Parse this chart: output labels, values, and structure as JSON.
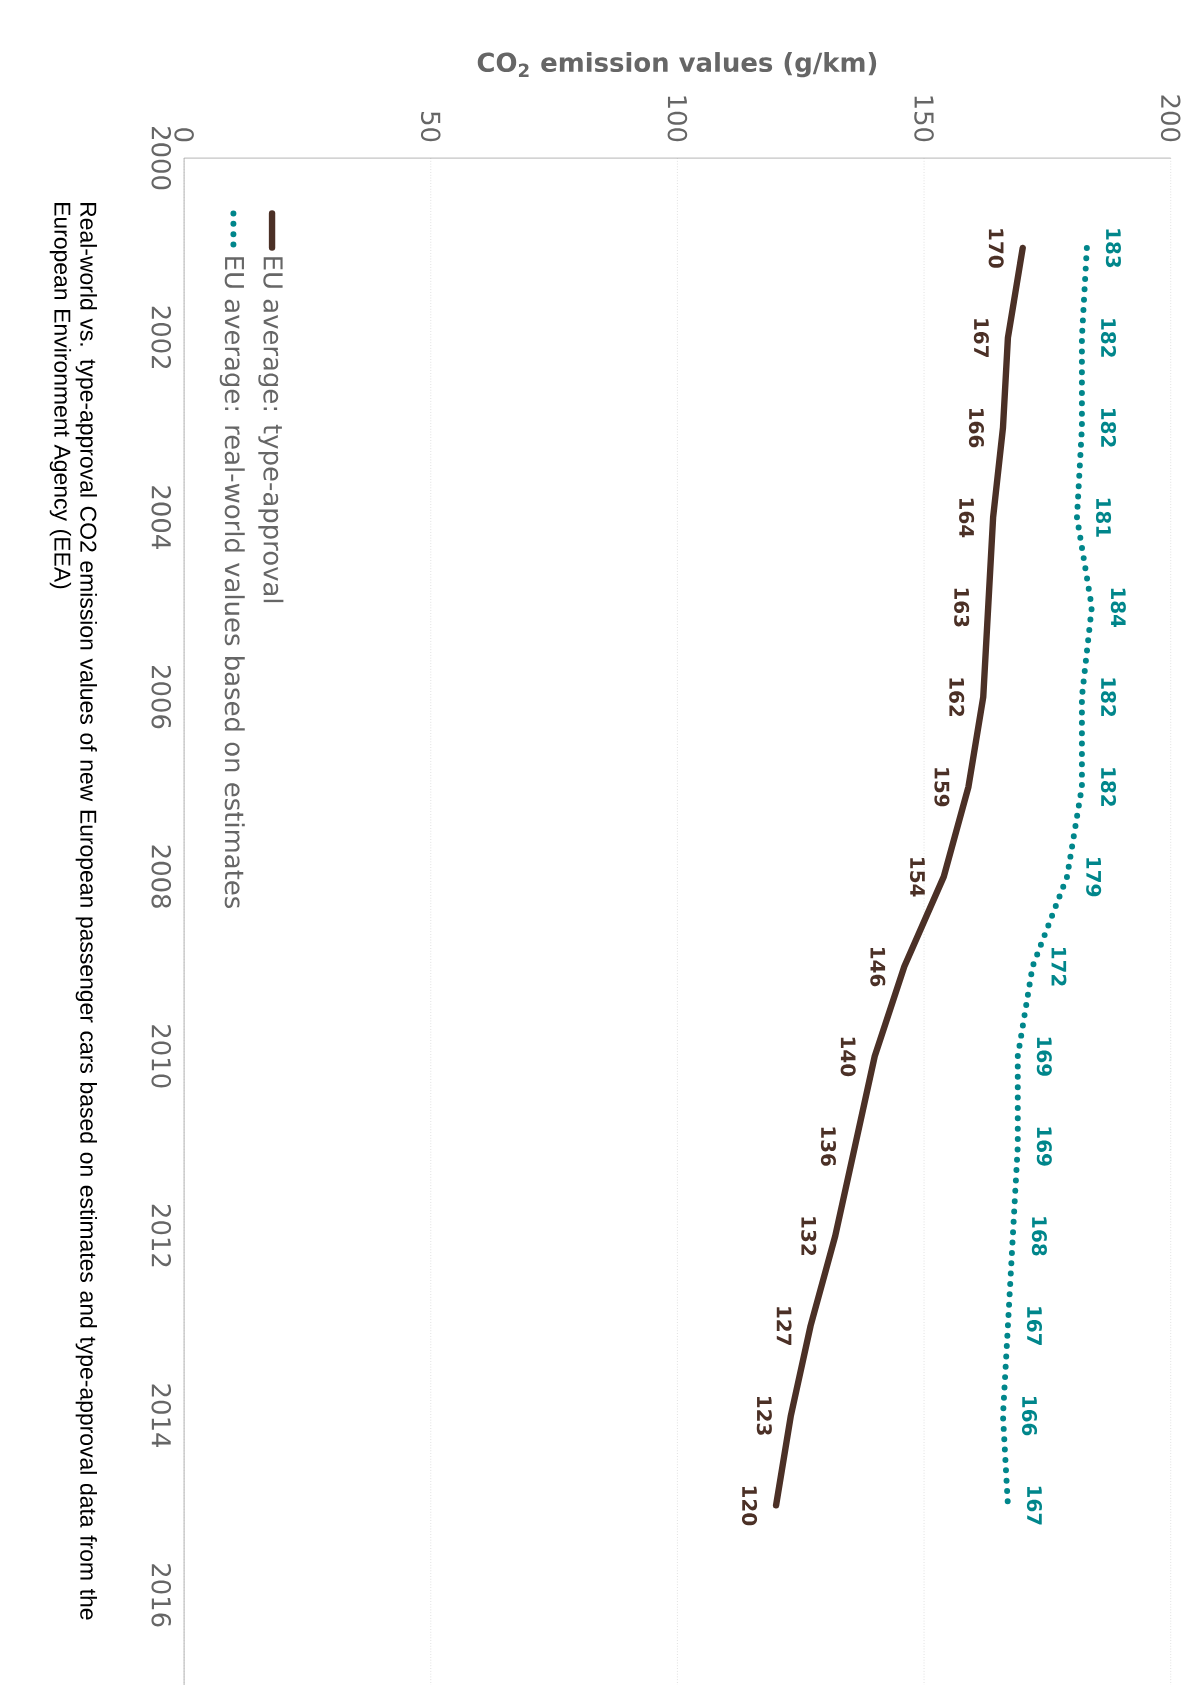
{
  "chart_data": {
    "type": "line",
    "orientation": "horizontal",
    "xlabel": "CO$_{2}$ emission values (g/km)",
    "x": [
      2001,
      2002,
      2003,
      2004,
      2005,
      2006,
      2007,
      2008,
      2009,
      2010,
      2011,
      2012,
      2013,
      2014,
      2015
    ],
    "series": [
      {
        "name": "EU average: type-approval",
        "color": "#4b3026",
        "line_style": "solid",
        "values": [
          170,
          167,
          166,
          164,
          163,
          162,
          159,
          154,
          146,
          140,
          136,
          132,
          127,
          123,
          120
        ]
      },
      {
        "name": "EU average: real-world values based on estimates",
        "color": "#00868b",
        "line_style": "dotted",
        "values": [
          183,
          182,
          182,
          181,
          184,
          182,
          182,
          179,
          172,
          169,
          169,
          168,
          167,
          166,
          167
        ]
      }
    ],
    "ylim": [
      2017,
      2000
    ],
    "yticks": [
      2000,
      2002,
      2004,
      2006,
      2008,
      2010,
      2012,
      2014,
      2016
    ],
    "xlim": [
      0,
      200
    ],
    "xticks": [
      0,
      50,
      100,
      150,
      200
    ],
    "grid": "x",
    "legend": "top left",
    "data_labels": true,
    "annotations": [
      "Real-world vs. type-approval CO2 emission values of new European passenger cars based on estimates and type-approval data from the European Environment Agency (EEA)"
    ]
  }
}
